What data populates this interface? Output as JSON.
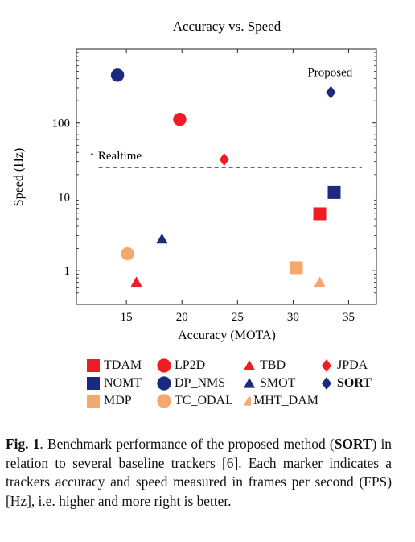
{
  "chart_data": {
    "type": "scatter",
    "title": "Accuracy vs. Speed",
    "xlabel": "Accuracy (MOTA)",
    "ylabel": "Speed (Hz)",
    "xlim": [
      10.5,
      37.5
    ],
    "ylim": [
      0.35,
      1000
    ],
    "yscale": "log",
    "x_ticks": [
      15,
      20,
      25,
      30,
      35
    ],
    "y_ticks": [
      1,
      10,
      100
    ],
    "y_tick_labels": [
      "1",
      "10",
      "100"
    ],
    "grid": false,
    "series": [
      {
        "name": "TDAM",
        "marker": "square",
        "color": "#ee1c25",
        "x": 32.4,
        "y": 5.9
      },
      {
        "name": "LP2D",
        "marker": "circle",
        "color": "#ee1c25",
        "x": 19.8,
        "y": 112
      },
      {
        "name": "TBD",
        "marker": "triangle",
        "color": "#ee1c25",
        "x": 15.9,
        "y": 0.7
      },
      {
        "name": "JPDA",
        "marker": "diamond",
        "color": "#ee1c25",
        "x": 23.8,
        "y": 32
      },
      {
        "name": "NOMT",
        "marker": "square",
        "color": "#1b2a80",
        "x": 33.7,
        "y": 11.5
      },
      {
        "name": "DP_NMS",
        "marker": "circle",
        "color": "#1b2a80",
        "x": 14.2,
        "y": 444.8
      },
      {
        "name": "SMOT",
        "marker": "triangle",
        "color": "#1b2a80",
        "x": 18.2,
        "y": 2.7
      },
      {
        "name": "SORT",
        "marker": "diamond",
        "color": "#1b2a80",
        "x": 33.4,
        "y": 260,
        "bold": true
      },
      {
        "name": "MDP",
        "marker": "square",
        "color": "#f5a86b",
        "x": 30.3,
        "y": 1.1
      },
      {
        "name": "TC_ODAL",
        "marker": "circle",
        "color": "#f5a86b",
        "x": 15.1,
        "y": 1.7
      },
      {
        "name": "MHT_DAM",
        "marker": "triangle",
        "color": "#f5a86b",
        "x": 32.4,
        "y": 0.7
      }
    ],
    "reference_line": {
      "label": "↑ Realtime",
      "y": 25,
      "x_range": [
        12.5,
        36.2
      ],
      "style": "dashed"
    },
    "annotations": [
      {
        "text": "Proposed",
        "x": 33.4,
        "y": 490
      }
    ],
    "legend_placement": "bottom"
  },
  "caption": {
    "label": "Fig. 1",
    "text_before": ". Benchmark performance of the proposed method (",
    "bold_term": "SORT",
    "text_after": ") in relation to several baseline trackers [6]. Each marker indicates a trackers accuracy and speed measured in frames per second (FPS) [Hz], i.e. higher and more right is better."
  }
}
